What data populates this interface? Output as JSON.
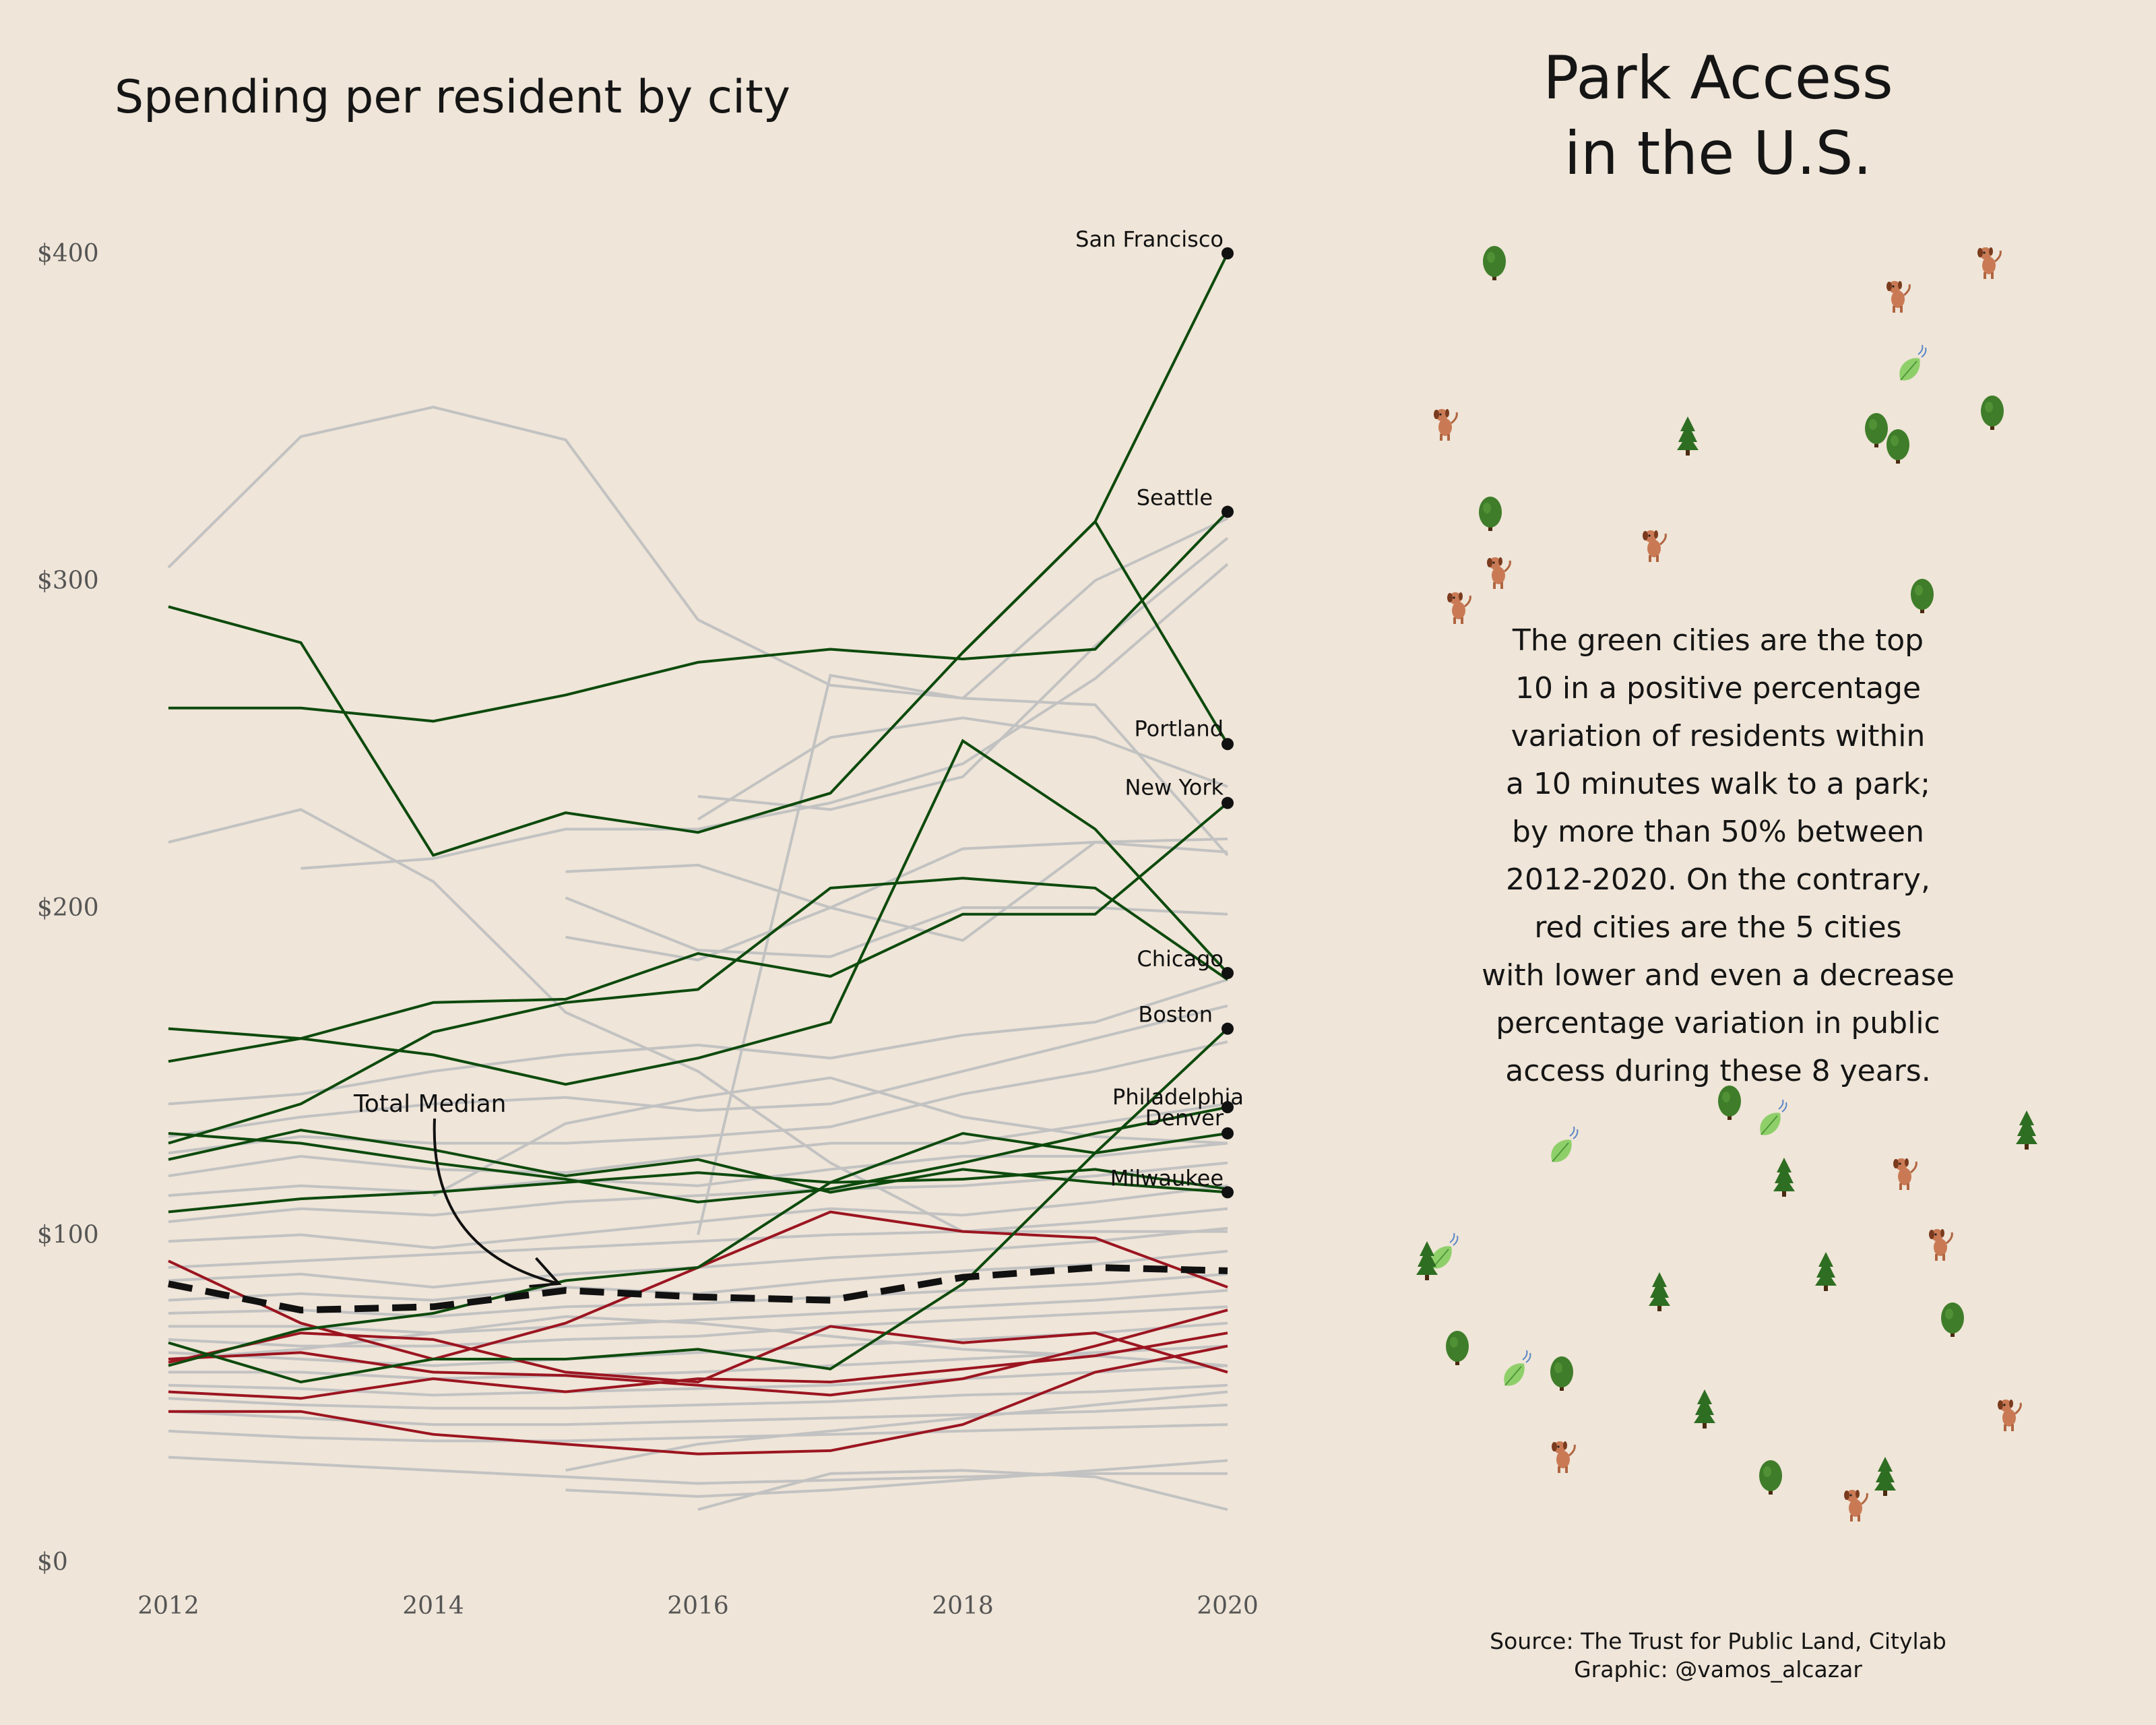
{
  "title": "Park Access in the U.S.",
  "title_lines": [
    "Park Access",
    "in the U.S."
  ],
  "description_lines": [
    "The green cities are the top",
    "10 in a positive percentage",
    "variation of residents within",
    "a 10 minutes walk to a park;",
    "by more than 50% between",
    "2012-2020. On the contrary,",
    "red cities are the 5 cities",
    "with lower and even a decrease",
    "percentage variation in public",
    "access during these 8 years."
  ],
  "source_lines": [
    "Source: The Trust for Public Land, Citylab",
    "Graphic: @vamos_alcazar"
  ],
  "colors": {
    "background": "#efe5d8",
    "green": "#0d4a0d",
    "red": "#9b1520",
    "gray": "#c2c2c2",
    "median": "#111111"
  },
  "icons": {
    "types": [
      "tree-icon",
      "pine-icon",
      "dog-icon",
      "leaf-icon"
    ]
  },
  "chart_data": {
    "type": "line",
    "title": "Spending per resident by city",
    "xlim": [
      2012,
      2020
    ],
    "ylim": [
      0,
      400
    ],
    "x_ticks": [
      2012,
      2014,
      2016,
      2018,
      2020
    ],
    "y_ticks": [
      0,
      100,
      200,
      300,
      400
    ],
    "y_tick_labels": [
      "$0",
      "$100",
      "$200",
      "$300",
      "$400"
    ],
    "grid": false,
    "annotation": "Total Median",
    "median": {
      "name": "Total Median",
      "x": [
        2012,
        2013,
        2014,
        2015,
        2016,
        2017,
        2018,
        2019,
        2020
      ],
      "values": [
        85,
        77,
        78,
        83,
        81,
        80,
        87,
        90,
        89
      ]
    },
    "labeled_series": [
      {
        "name": "San Francisco",
        "color": "green",
        "x": [
          2018,
          2019,
          2020
        ],
        "values": [
          278,
          318,
          400
        ]
      },
      {
        "name": "Seattle",
        "color": "green",
        "x": [
          2012,
          2013,
          2014,
          2015,
          2016,
          2017,
          2018,
          2019,
          2020
        ],
        "values": [
          261,
          261,
          257,
          265,
          275,
          279,
          276,
          279,
          321
        ]
      },
      {
        "name": "Portland",
        "color": "green",
        "x": [
          2012,
          2013,
          2014,
          2015,
          2016,
          2017,
          2018,
          2019,
          2020
        ],
        "values": [
          292,
          281,
          216,
          229,
          223,
          235,
          278,
          318,
          250
        ]
      },
      {
        "name": "New York",
        "color": "green",
        "x": [
          2012,
          2013,
          2014,
          2015,
          2016,
          2017,
          2018,
          2019,
          2020
        ],
        "values": [
          153,
          160,
          171,
          172,
          186,
          179,
          198,
          198,
          232
        ]
      },
      {
        "name": "Chicago",
        "color": "green",
        "x": [
          2012,
          2013,
          2014,
          2015,
          2016,
          2017,
          2018,
          2019,
          2020
        ],
        "values": [
          163,
          160,
          155,
          146,
          154,
          165,
          251,
          224,
          180
        ]
      },
      {
        "name": "Boston",
        "color": "green",
        "x": [
          2012,
          2013,
          2014,
          2015,
          2016,
          2017,
          2018,
          2019,
          2020
        ],
        "values": [
          67,
          55,
          62,
          62,
          65,
          59,
          85,
          125,
          163
        ]
      },
      {
        "name": "Philadelphia",
        "color": "green",
        "x": [
          2012,
          2013,
          2014,
          2015,
          2016,
          2017,
          2018,
          2019,
          2020
        ],
        "values": [
          131,
          128,
          122,
          117,
          110,
          114,
          122,
          131,
          139
        ]
      },
      {
        "name": "Denver",
        "color": "green",
        "x": [
          2012,
          2013,
          2014,
          2015,
          2016,
          2017,
          2018,
          2019,
          2020
        ],
        "values": [
          60,
          71,
          76,
          86,
          90,
          116,
          131,
          125,
          131
        ]
      },
      {
        "name": "Milwaukee",
        "color": "green",
        "x": [
          2012,
          2013,
          2014,
          2015,
          2016,
          2017,
          2018,
          2019,
          2020
        ],
        "values": [
          123,
          132,
          126,
          118,
          123,
          113,
          120,
          116,
          113
        ]
      }
    ],
    "other_green_series": [
      {
        "x": [
          2012,
          2013,
          2014,
          2015,
          2016,
          2017,
          2018,
          2019,
          2020
        ],
        "values": [
          128,
          140,
          162,
          171,
          175,
          206,
          209,
          206,
          178
        ]
      },
      {
        "x": [
          2012,
          2013,
          2014,
          2015,
          2016,
          2017,
          2018,
          2019,
          2020
        ],
        "values": [
          107,
          111,
          113,
          116,
          119,
          116,
          117,
          120,
          114
        ]
      }
    ],
    "red_series": [
      {
        "x": [
          2012,
          2013,
          2014,
          2015,
          2016,
          2017,
          2018,
          2019,
          2020
        ],
        "values": [
          92,
          73,
          62,
          73,
          90,
          107,
          101,
          99,
          84
        ]
      },
      {
        "x": [
          2012,
          2013,
          2014,
          2015,
          2016,
          2017,
          2018,
          2019,
          2020
        ],
        "values": [
          61,
          70,
          68,
          58,
          55,
          72,
          67,
          70,
          58
        ]
      },
      {
        "x": [
          2012,
          2013,
          2014,
          2015,
          2016,
          2017,
          2018,
          2019,
          2020
        ],
        "values": [
          62,
          64,
          58,
          57,
          54,
          51,
          56,
          66,
          77
        ]
      },
      {
        "x": [
          2012,
          2013,
          2014,
          2015,
          2016,
          2017,
          2018,
          2019,
          2020
        ],
        "values": [
          52,
          50,
          56,
          52,
          56,
          55,
          59,
          63,
          70
        ]
      },
      {
        "x": [
          2012,
          2013,
          2014,
          2015,
          2016,
          2017,
          2018,
          2019,
          2020
        ],
        "values": [
          46,
          46,
          39,
          36,
          33,
          34,
          42,
          58,
          66
        ]
      }
    ],
    "gray_series": [
      {
        "x": [
          2012,
          2013,
          2014,
          2015,
          2016
        ],
        "values": [
          304,
          344,
          353,
          343,
          288
        ]
      },
      {
        "x": [
          2016,
          2017,
          2018,
          2019,
          2020
        ],
        "values": [
          288,
          268,
          264,
          262,
          216
        ]
      },
      {
        "x": [
          2012,
          2013,
          2014,
          2015,
          2016,
          2017,
          2018,
          2019,
          2020
        ],
        "values": [
          220,
          230,
          208,
          168,
          150,
          122,
          101,
          101,
          101
        ]
      },
      {
        "x": [
          2013,
          2014,
          2015,
          2016,
          2017,
          2018,
          2019,
          2020
        ],
        "values": [
          212,
          215,
          224,
          224,
          232,
          244,
          270,
          305
        ]
      },
      {
        "x": [
          2016,
          2017,
          2018,
          2019,
          2020
        ],
        "values": [
          227,
          252,
          258,
          252,
          237
        ]
      },
      {
        "x": [
          2016,
          2017,
          2018,
          2019,
          2020
        ],
        "values": [
          234,
          230,
          240,
          280,
          313
        ]
      },
      {
        "x": [
          2015,
          2016,
          2017,
          2018,
          2019,
          2020
        ],
        "values": [
          211,
          213,
          200,
          190,
          220,
          221
        ]
      },
      {
        "x": [
          2016,
          2017,
          2018,
          2019,
          2020
        ],
        "values": [
          100,
          271,
          264,
          300,
          319
        ]
      },
      {
        "x": [
          2015,
          2016,
          2017,
          2018,
          2019,
          2020
        ],
        "values": [
          203,
          187,
          185,
          200,
          200,
          198
        ]
      },
      {
        "x": [
          2015,
          2016,
          2017,
          2018,
          2019,
          2020
        ],
        "values": [
          191,
          184,
          200,
          218,
          220,
          217
        ]
      },
      {
        "x": [
          2012,
          2013,
          2014,
          2015,
          2016,
          2017,
          2018,
          2019,
          2020
        ],
        "values": [
          140,
          143,
          150,
          155,
          158,
          154,
          161,
          165,
          178
        ]
      },
      {
        "x": [
          2012,
          2013,
          2014,
          2015,
          2016,
          2017,
          2018,
          2019,
          2020
        ],
        "values": [
          130,
          136,
          140,
          142,
          138,
          140,
          150,
          160,
          170
        ]
      },
      {
        "x": [
          2012,
          2013,
          2014,
          2015,
          2016,
          2017,
          2018,
          2019,
          2020
        ],
        "values": [
          125,
          130,
          128,
          128,
          130,
          133,
          143,
          150,
          159
        ]
      },
      {
        "x": [
          2012,
          2013,
          2014,
          2015,
          2016,
          2017,
          2018,
          2019,
          2020
        ],
        "values": [
          118,
          124,
          120,
          119,
          124,
          128,
          128,
          134,
          140
        ]
      },
      {
        "x": [
          2012,
          2013,
          2014,
          2015,
          2016,
          2017,
          2018,
          2019,
          2020
        ],
        "values": [
          112,
          115,
          113,
          117,
          115,
          120,
          124,
          124,
          128
        ]
      },
      {
        "x": [
          2012,
          2013,
          2014,
          2015,
          2016,
          2017,
          2018,
          2019,
          2020
        ],
        "values": [
          104,
          108,
          106,
          110,
          112,
          114,
          115,
          118,
          122
        ]
      },
      {
        "x": [
          2012,
          2013,
          2014,
          2015,
          2016,
          2017,
          2018,
          2019,
          2020
        ],
        "values": [
          98,
          100,
          96,
          100,
          104,
          108,
          106,
          110,
          115
        ]
      },
      {
        "x": [
          2012,
          2013,
          2014,
          2015,
          2016,
          2017,
          2018,
          2019,
          2020
        ],
        "values": [
          90,
          92,
          94,
          96,
          98,
          100,
          101,
          104,
          108
        ]
      },
      {
        "x": [
          2012,
          2013,
          2014,
          2015,
          2016,
          2017,
          2018,
          2019,
          2020
        ],
        "values": [
          86,
          88,
          84,
          88,
          90,
          93,
          95,
          98,
          102
        ]
      },
      {
        "x": [
          2012,
          2013,
          2014,
          2015,
          2016,
          2017,
          2018,
          2019,
          2020
        ],
        "values": [
          80,
          82,
          80,
          84,
          82,
          86,
          89,
          91,
          95
        ]
      },
      {
        "x": [
          2012,
          2013,
          2014,
          2015,
          2016,
          2017,
          2018,
          2019,
          2020
        ],
        "values": [
          76,
          77,
          75,
          78,
          79,
          81,
          83,
          85,
          88
        ]
      },
      {
        "x": [
          2012,
          2013,
          2014,
          2015,
          2016,
          2017,
          2018,
          2019,
          2020
        ],
        "values": [
          72,
          72,
          70,
          72,
          74,
          76,
          78,
          80,
          83
        ]
      },
      {
        "x": [
          2012,
          2013,
          2014,
          2015,
          2016,
          2017,
          2018,
          2019,
          2020
        ],
        "values": [
          68,
          66,
          66,
          68,
          69,
          72,
          74,
          76,
          78
        ]
      },
      {
        "x": [
          2012,
          2013,
          2014,
          2015,
          2016,
          2017,
          2018,
          2019,
          2020
        ],
        "values": [
          64,
          62,
          60,
          62,
          64,
          66,
          68,
          70,
          73
        ]
      },
      {
        "x": [
          2012,
          2013,
          2014,
          2015,
          2016,
          2017,
          2018,
          2019,
          2020
        ],
        "values": [
          58,
          58,
          56,
          57,
          58,
          60,
          62,
          64,
          66
        ]
      },
      {
        "x": [
          2012,
          2013,
          2014,
          2015,
          2016,
          2017,
          2018,
          2019,
          2020
        ],
        "values": [
          54,
          53,
          51,
          52,
          53,
          54,
          56,
          58,
          60
        ]
      },
      {
        "x": [
          2012,
          2013,
          2014,
          2015,
          2016,
          2017,
          2018,
          2019,
          2020
        ],
        "values": [
          50,
          48,
          47,
          47,
          48,
          49,
          51,
          52,
          54
        ]
      },
      {
        "x": [
          2012,
          2013,
          2014,
          2015,
          2016,
          2017,
          2018,
          2019,
          2020
        ],
        "values": [
          46,
          44,
          42,
          42,
          43,
          44,
          45,
          46,
          48
        ]
      },
      {
        "x": [
          2012,
          2013,
          2014,
          2015,
          2016,
          2017,
          2018,
          2019,
          2020
        ],
        "values": [
          40,
          38,
          37,
          37,
          38,
          39,
          40,
          41,
          42
        ]
      },
      {
        "x": [
          2012,
          2013,
          2014,
          2015,
          2016,
          2017,
          2018,
          2019,
          2020
        ],
        "values": [
          32,
          30,
          28,
          26,
          24,
          25,
          26,
          27,
          27
        ]
      },
      {
        "x": [
          2015,
          2016,
          2017,
          2018,
          2019,
          2020
        ],
        "values": [
          22,
          20,
          22,
          25,
          28,
          31
        ]
      },
      {
        "x": [
          2016,
          2017,
          2018,
          2019,
          2020
        ],
        "values": [
          16,
          27,
          28,
          26,
          16
        ]
      },
      {
        "x": [
          2015,
          2016,
          2017,
          2018,
          2019,
          2020
        ],
        "values": [
          28,
          36,
          40,
          44,
          48,
          52
        ]
      },
      {
        "x": [
          2014,
          2015,
          2016,
          2017,
          2018,
          2019,
          2020
        ],
        "values": [
          112,
          134,
          142,
          148,
          136,
          130,
          128
        ]
      },
      {
        "x": [
          2012,
          2013,
          2014,
          2015,
          2016,
          2017,
          2018,
          2019,
          2020
        ],
        "values": [
          62,
          65,
          70,
          75,
          73,
          69,
          65,
          63,
          60
        ]
      }
    ]
  }
}
